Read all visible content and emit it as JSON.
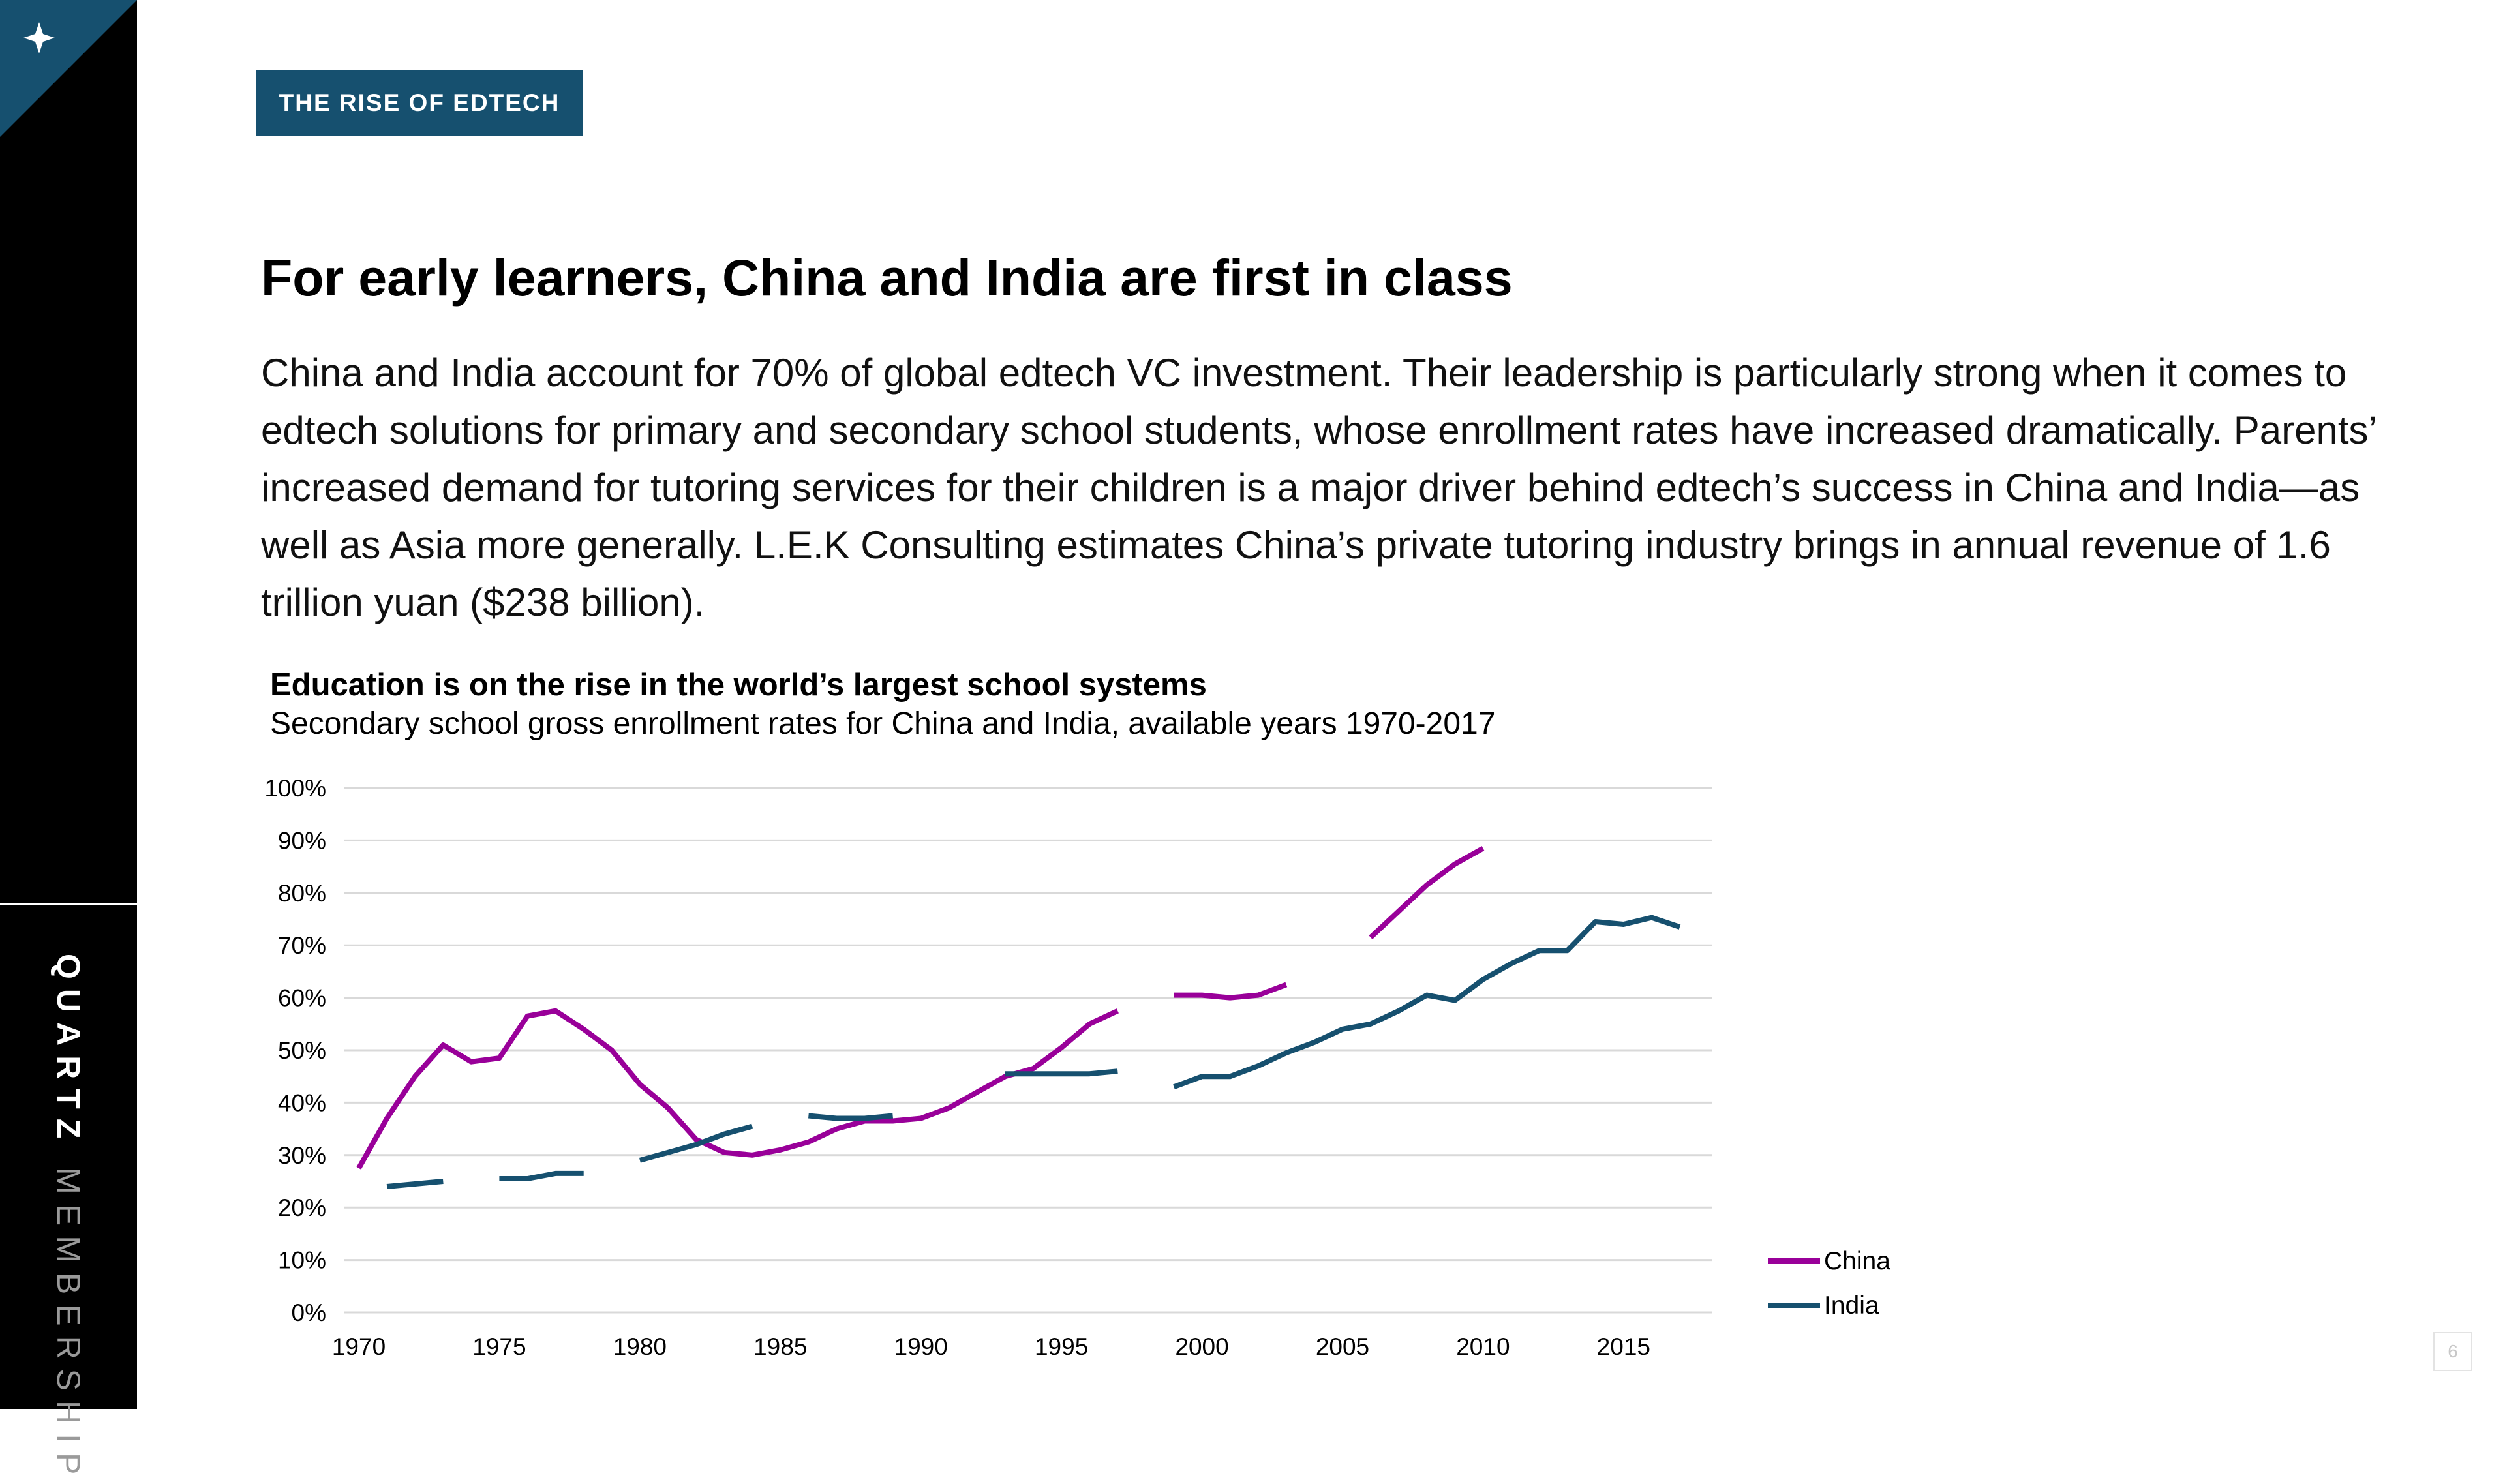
{
  "sidebar": {
    "brand_bold": "QUARTZ",
    "brand_light": "MEMBERSHIP",
    "corner_icon": "sparkle-icon"
  },
  "tag": "THE RISE OF EDTECH",
  "headline": "For early learners, China and India are first in class",
  "body": "China and India account for 70% of global edtech VC investment. Their leadership is particularly strong when it comes to edtech solutions for primary and secondary school students, whose enrollment rates have increased dramatically. Parents’ increased demand for tutoring services for their children is a major driver behind edtech’s success in China and India—as well as Asia more generally. L.E.K Consulting estimates China’s private tutoring industry brings in annual revenue of 1.6 trillion yuan ($238 billion).",
  "page_number": "6",
  "colors": {
    "china": "#990099",
    "india": "#16506f",
    "tag_bg": "#16506f",
    "corner": "#16506f",
    "grid": "#d9d9d9"
  },
  "chart_data": {
    "type": "line",
    "title": "Education is on the rise in the world’s largest school systems",
    "subtitle": "Secondary school gross enrollment rates for China and India, available years 1970-2017",
    "xlabel": "",
    "ylabel": "",
    "xlim": [
      1970,
      2017
    ],
    "ylim": [
      0,
      100
    ],
    "x_ticks": [
      1970,
      1975,
      1980,
      1985,
      1990,
      1995,
      2000,
      2005,
      2010,
      2015
    ],
    "y_ticks": [
      "0%",
      "10%",
      "20%",
      "30%",
      "40%",
      "50%",
      "60%",
      "70%",
      "80%",
      "90%",
      "100%"
    ],
    "grid": true,
    "legend": "bottom-right",
    "series": [
      {
        "name": "China",
        "color": "#990099",
        "segments": [
          [
            [
              1970,
              27.5
            ],
            [
              1971,
              37
            ],
            [
              1972,
              45
            ],
            [
              1973,
              51
            ],
            [
              1974,
              47.8
            ],
            [
              1975,
              48.5
            ],
            [
              1976,
              56.5
            ],
            [
              1977,
              57.5
            ],
            [
              1978,
              54
            ],
            [
              1979,
              50
            ],
            [
              1980,
              43.5
            ],
            [
              1981,
              39
            ],
            [
              1982,
              33
            ],
            [
              1983,
              30.5
            ],
            [
              1984,
              30
            ],
            [
              1985,
              31
            ],
            [
              1986,
              32.5
            ],
            [
              1987,
              35
            ],
            [
              1988,
              36.5
            ],
            [
              1989,
              36.5
            ],
            [
              1990,
              37
            ],
            [
              1991,
              39
            ],
            [
              1992,
              42
            ],
            [
              1993,
              45
            ],
            [
              1994,
              46.5
            ],
            [
              1995,
              50.5
            ],
            [
              1996,
              55
            ],
            [
              1997,
              57.5
            ]
          ],
          [
            [
              1999,
              60.5
            ],
            [
              2000,
              60.5
            ],
            [
              2001,
              60
            ],
            [
              2002,
              60.5
            ],
            [
              2003,
              62.5
            ]
          ],
          [
            [
              2006,
              71.5
            ],
            [
              2007,
              76.5
            ],
            [
              2008,
              81.5
            ],
            [
              2009,
              85.5
            ],
            [
              2010,
              88.5
            ]
          ]
        ]
      },
      {
        "name": "India",
        "color": "#16506f",
        "segments": [
          [
            [
              1971,
              24
            ],
            [
              1972,
              24.5
            ],
            [
              1973,
              25
            ]
          ],
          [
            [
              1975,
              25.5
            ],
            [
              1976,
              25.5
            ],
            [
              1977,
              26.5
            ],
            [
              1978,
              26.5
            ]
          ],
          [
            [
              1980,
              29
            ],
            [
              1981,
              30.5
            ],
            [
              1982,
              32
            ],
            [
              1983,
              34
            ],
            [
              1984,
              35.5
            ]
          ],
          [
            [
              1986,
              37.5
            ],
            [
              1987,
              37
            ],
            [
              1988,
              37
            ],
            [
              1989,
              37.5
            ]
          ],
          [
            [
              1993,
              45.5
            ],
            [
              1994,
              45.5
            ],
            [
              1995,
              45.5
            ],
            [
              1996,
              45.5
            ],
            [
              1997,
              46
            ]
          ],
          [
            [
              1999,
              43
            ],
            [
              2000,
              45
            ],
            [
              2001,
              45
            ],
            [
              2002,
              47
            ],
            [
              2003,
              49.5
            ],
            [
              2004,
              51.5
            ],
            [
              2005,
              54
            ],
            [
              2006,
              55
            ],
            [
              2007,
              57.5
            ],
            [
              2008,
              60.5
            ],
            [
              2009,
              59.5
            ],
            [
              2010,
              63.5
            ],
            [
              2011,
              66.5
            ],
            [
              2012,
              69
            ],
            [
              2013,
              69
            ],
            [
              2014,
              74.5
            ],
            [
              2015,
              74
            ],
            [
              2016,
              75.3
            ],
            [
              2017,
              73.5
            ]
          ]
        ]
      }
    ]
  }
}
